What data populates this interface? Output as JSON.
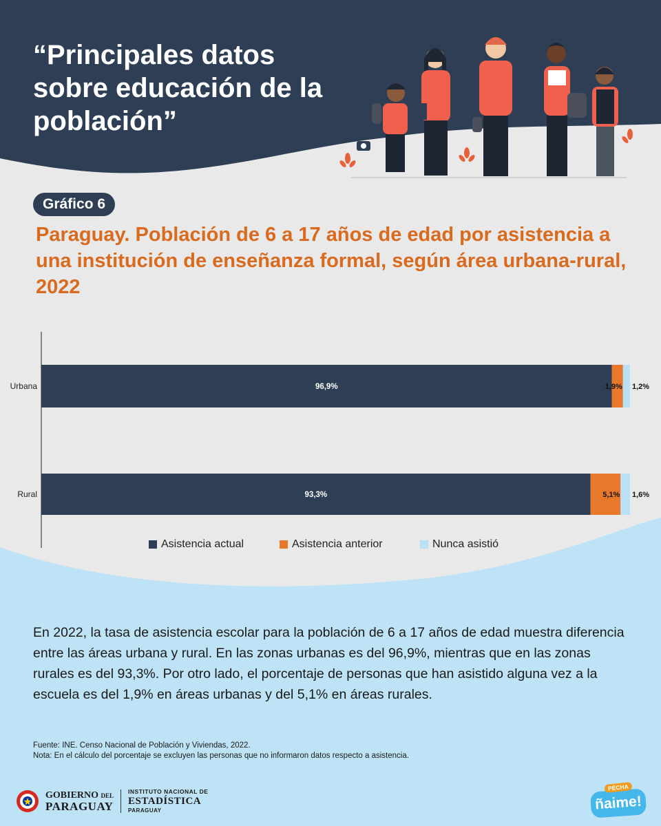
{
  "header": {
    "title": "“Principales datos\nsobre educación de la\npoblación”"
  },
  "badge": "Gráfico 6",
  "chart_title": "Paraguay. Población de 6 a 17 años de edad por asistencia a una institución de enseñanza formal, según área urbana-rural, 2022",
  "colors": {
    "navy": "#2e3f55",
    "orange": "#e8782a",
    "light_blue": "#b9e0f4",
    "title_orange": "#d96a1e"
  },
  "chart_data": {
    "type": "bar",
    "orientation": "horizontal",
    "stacked": true,
    "categories": [
      "Urbana",
      "Rural"
    ],
    "series": [
      {
        "name": "Asistencia actual",
        "values": [
          96.9,
          93.3
        ],
        "labels": [
          "96,9%",
          "93,3%"
        ],
        "color": "#2e3f55"
      },
      {
        "name": "Asistencia anterior",
        "values": [
          1.9,
          5.1
        ],
        "labels": [
          "1,9%",
          "5,1%"
        ],
        "color": "#e8782a"
      },
      {
        "name": "Nunca asistió",
        "values": [
          1.2,
          1.6
        ],
        "labels": [
          "1,2%",
          "1,6%"
        ],
        "color": "#b9e0f4"
      }
    ],
    "xlim": [
      0,
      100
    ],
    "legend_position": "bottom",
    "grid": false
  },
  "body_text": "En 2022, la tasa de asistencia escolar para la población de 6 a 17 años de edad muestra diferencia entre las áreas urbana y rural. En las zonas urbanas es del 96,9%, mientras que en las zonas rurales es del 93,3%. Por otro lado, el porcentaje de personas que han asistido alguna vez a la escuela es del 1,9% en áreas urbanas y del 5,1% en áreas rurales.",
  "notes": {
    "source": "Fuente: INE. Censo Nacional de Población y Viviendas, 2022.",
    "note": "Nota: En el cálculo del porcentaje se excluyen las personas que no informaron datos respecto a asistencia."
  },
  "footer": {
    "gov_line1": "GOBIERNO",
    "gov_del": "DEL",
    "gov_line2": "PARAGUAY",
    "ine_line1": "INSTITUTO NACIONAL DE",
    "ine_line2": "ESTADÍSTICA",
    "ine_line3": "PARAGUAY",
    "brand_top": "PÉCHA",
    "brand_main": "ñaime!"
  }
}
